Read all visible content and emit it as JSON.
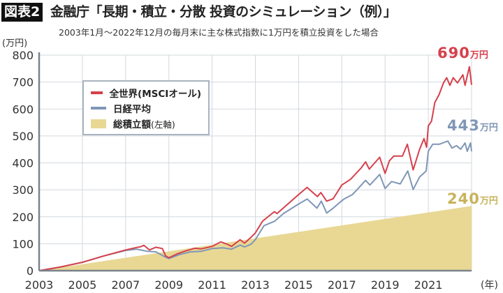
{
  "header": {
    "badge": "図表2",
    "title": "金融庁「長期・積立・分散 投資のシミュレーション（例）」",
    "subtitle": "2003年1月〜2022年12月の毎月末に主な株式指数に1万円を積立投資をした場合"
  },
  "chart_data": {
    "type": "line",
    "title": "金融庁「長期・積立・分散 投資のシミュレーション（例）」",
    "subtitle": "2003年1月〜2022年12月の毎月末に主な株式指数に1万円を積立投資をした場合",
    "ylabel": "(万円)",
    "xlabel": "(年)",
    "xlim": [
      2003,
      2023
    ],
    "ylim": [
      0,
      800
    ],
    "grid": true,
    "legend_placement": "top-left",
    "x_ticks": [
      "2003",
      "2005",
      "2007",
      "2009",
      "2011",
      "2013",
      "2015",
      "2017",
      "2019",
      "2021"
    ],
    "y_ticks": [
      "0",
      "100",
      "200",
      "300",
      "400",
      "500",
      "600",
      "700",
      "800"
    ],
    "colors": {
      "world": "#d6404c",
      "nikkei": "#7f96b6",
      "cumulative": "#e8d894",
      "cumulative_label": "#c8b35c"
    },
    "series": [
      {
        "name": "全世界(MSCIオール)",
        "suffix": "",
        "kind": "line",
        "end_label": "690",
        "end_unit": "万円",
        "points": [
          [
            2003,
            0
          ],
          [
            2004,
            14
          ],
          [
            2005,
            31
          ],
          [
            2006,
            55
          ],
          [
            2007,
            77
          ],
          [
            2007.5,
            86
          ],
          [
            2007.7,
            89
          ],
          [
            2007.85,
            94
          ],
          [
            2008.1,
            77
          ],
          [
            2008.4,
            87
          ],
          [
            2008.7,
            82
          ],
          [
            2008.85,
            55
          ],
          [
            2009.0,
            48
          ],
          [
            2009.4,
            63
          ],
          [
            2009.8,
            74
          ],
          [
            2010.2,
            83
          ],
          [
            2010.5,
            81
          ],
          [
            2011.0,
            90
          ],
          [
            2011.4,
            107
          ],
          [
            2011.7,
            98
          ],
          [
            2011.9,
            90
          ],
          [
            2012.3,
            115
          ],
          [
            2012.5,
            102
          ],
          [
            2012.8,
            124
          ],
          [
            2013.0,
            140
          ],
          [
            2013.34,
            184
          ],
          [
            2013.88,
            219
          ],
          [
            2014.0,
            212
          ],
          [
            2014.95,
            279
          ],
          [
            2015.39,
            309
          ],
          [
            2015.87,
            275
          ],
          [
            2016.03,
            290
          ],
          [
            2016.3,
            258
          ],
          [
            2016.6,
            267
          ],
          [
            2017.0,
            318
          ],
          [
            2017.4,
            339
          ],
          [
            2017.9,
            382
          ],
          [
            2018.1,
            404
          ],
          [
            2018.27,
            377
          ],
          [
            2018.75,
            421
          ],
          [
            2019.0,
            361
          ],
          [
            2019.2,
            408
          ],
          [
            2019.4,
            425
          ],
          [
            2019.8,
            425
          ],
          [
            2020.03,
            469
          ],
          [
            2020.3,
            374
          ],
          [
            2020.6,
            451
          ],
          [
            2020.8,
            490
          ],
          [
            2020.92,
            458
          ],
          [
            2021.0,
            537
          ],
          [
            2021.15,
            555
          ],
          [
            2021.3,
            624
          ],
          [
            2021.5,
            654
          ],
          [
            2021.7,
            697
          ],
          [
            2021.85,
            716
          ],
          [
            2022.0,
            688
          ],
          [
            2022.15,
            716
          ],
          [
            2022.35,
            697
          ],
          [
            2022.6,
            727
          ],
          [
            2022.7,
            688
          ],
          [
            2022.9,
            757
          ],
          [
            2023.0,
            690
          ]
        ]
      },
      {
        "name": "日経平均",
        "kind": "line",
        "end_label": "443",
        "end_unit": "万円",
        "points": [
          [
            2003,
            0
          ],
          [
            2004,
            14
          ],
          [
            2005,
            31
          ],
          [
            2006,
            55
          ],
          [
            2007,
            75
          ],
          [
            2007.5,
            80
          ],
          [
            2008.0,
            72
          ],
          [
            2008.4,
            70
          ],
          [
            2008.8,
            52
          ],
          [
            2009.0,
            45
          ],
          [
            2009.5,
            60
          ],
          [
            2010.0,
            70
          ],
          [
            2010.5,
            72
          ],
          [
            2011.0,
            82
          ],
          [
            2011.5,
            85
          ],
          [
            2011.9,
            80
          ],
          [
            2012.3,
            95
          ],
          [
            2012.5,
            88
          ],
          [
            2012.8,
            98
          ],
          [
            2013.0,
            115
          ],
          [
            2013.4,
            167
          ],
          [
            2013.9,
            184
          ],
          [
            2014.3,
            212
          ],
          [
            2014.95,
            245
          ],
          [
            2015.4,
            266
          ],
          [
            2015.85,
            232
          ],
          [
            2016.05,
            258
          ],
          [
            2016.3,
            214
          ],
          [
            2016.6,
            232
          ],
          [
            2016.9,
            253
          ],
          [
            2017.1,
            266
          ],
          [
            2017.5,
            283
          ],
          [
            2018.1,
            335
          ],
          [
            2018.3,
            318
          ],
          [
            2018.75,
            357
          ],
          [
            2019.0,
            305
          ],
          [
            2019.3,
            331
          ],
          [
            2019.7,
            322
          ],
          [
            2020.05,
            370
          ],
          [
            2020.3,
            301
          ],
          [
            2020.6,
            348
          ],
          [
            2020.9,
            370
          ],
          [
            2021.0,
            443
          ],
          [
            2021.2,
            469
          ],
          [
            2021.5,
            469
          ],
          [
            2021.9,
            481
          ],
          [
            2022.1,
            455
          ],
          [
            2022.3,
            464
          ],
          [
            2022.5,
            451
          ],
          [
            2022.7,
            474
          ],
          [
            2022.8,
            443
          ],
          [
            2022.95,
            474
          ],
          [
            2023.0,
            443
          ]
        ]
      },
      {
        "name": "総積立額",
        "suffix": "(左軸)",
        "kind": "area",
        "end_label": "240",
        "end_unit": "万円",
        "points": [
          [
            2003,
            0
          ],
          [
            2023,
            240
          ]
        ]
      }
    ]
  }
}
